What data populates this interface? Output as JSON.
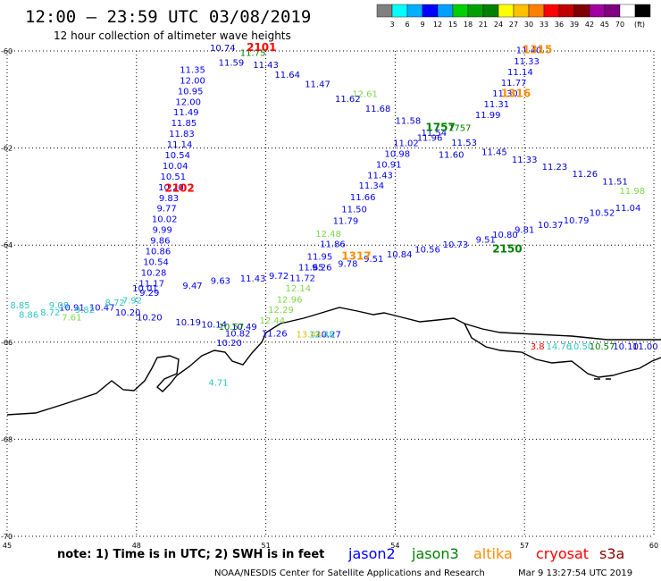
{
  "header": {
    "title": "12:00 – 23:59 UTC 03/08/2019",
    "subtitle": "12 hour collection of altimeter wave heights"
  },
  "color_scale": {
    "colors": [
      "#808080",
      "#00ffff",
      "#00b0ff",
      "#0000ff",
      "#00a0ff",
      "#00d000",
      "#00a000",
      "#008000",
      "#ffff00",
      "#ffc000",
      "#ff8000",
      "#ff0000",
      "#c00000",
      "#800000",
      "#a000a0",
      "#800080",
      "#ffffff",
      "#000000"
    ],
    "labels": [
      "3",
      "6",
      "9",
      "12",
      "15",
      "18",
      "21",
      "24",
      "27",
      "30",
      "33",
      "36",
      "39",
      "42",
      "45",
      "70",
      "(ft)"
    ],
    "unit": "(ft)"
  },
  "footer": {
    "note": "note:  1) Time is in UTC;  2) SWH is in feet",
    "credit": "NOAA/NESDIS Center for Satellite Applications and Research",
    "timestamp": "Mar  9 13:27:54 UTC 2019",
    "missions": [
      {
        "name": "jason2",
        "color": "#0000ff"
      },
      {
        "name": "jason3",
        "color": "#008000"
      },
      {
        "name": "altika",
        "color": "#ff8c00"
      },
      {
        "name": "cryosat",
        "color": "#ff0000"
      },
      {
        "name": "s3a",
        "color": "#8b0000"
      }
    ]
  },
  "chart_data": {
    "type": "scatter",
    "title": "12:00 – 23:59 UTC 03/08/2019",
    "subtitle": "12 hour collection of altimeter wave heights",
    "xlabel": "",
    "ylabel": "",
    "xlim": [
      45,
      60
    ],
    "ylim": [
      -70,
      -60
    ],
    "x_ticks": [
      45,
      48,
      51,
      54,
      57,
      60
    ],
    "y_ticks": [
      -60,
      -62,
      -64,
      -66,
      -68,
      -70
    ],
    "x_tick_labels": [
      "45",
      "48",
      "51",
      "54",
      "57",
      "60"
    ],
    "y_tick_labels": [
      "-60",
      "-62",
      "-64",
      "-66",
      "-68",
      "-70"
    ],
    "grid": true,
    "pass_times": [
      {
        "text": "2101",
        "lon": 50.9,
        "lat": -60.0,
        "color": "#ff0000"
      },
      {
        "text": "1315",
        "lon": 57.3,
        "lat": -60.05,
        "color": "#ff8c00"
      },
      {
        "text": "1316",
        "lon": 56.8,
        "lat": -60.95,
        "color": "#ff8c00"
      },
      {
        "text": "1757",
        "lon": 55.05,
        "lat": -61.65,
        "color": "#008000"
      },
      {
        "text": "2102",
        "lon": 49.0,
        "lat": -62.9,
        "color": "#ff0000"
      },
      {
        "text": "2150",
        "lon": 56.6,
        "lat": -64.15,
        "color": "#008000"
      },
      {
        "text": "1317",
        "lon": 53.1,
        "lat": -64.3,
        "color": "#ff8c00"
      }
    ],
    "series": [
      {
        "name": "jason2",
        "color": "#0000ff",
        "points": [
          {
            "lon": 49.3,
            "lat": -60.45,
            "v": "11.35"
          },
          {
            "lon": 49.3,
            "lat": -60.67,
            "v": "12.00"
          },
          {
            "lon": 49.25,
            "lat": -60.89,
            "v": "10.95"
          },
          {
            "lon": 49.2,
            "lat": -61.11,
            "v": "12.00"
          },
          {
            "lon": 49.15,
            "lat": -61.33,
            "v": "11.49"
          },
          {
            "lon": 49.1,
            "lat": -61.55,
            "v": "11.85"
          },
          {
            "lon": 49.05,
            "lat": -61.77,
            "v": "11.83"
          },
          {
            "lon": 49.0,
            "lat": -61.99,
            "v": "11.14"
          },
          {
            "lon": 48.95,
            "lat": -62.21,
            "v": "10.54"
          },
          {
            "lon": 48.9,
            "lat": -62.43,
            "v": "10.04"
          },
          {
            "lon": 48.85,
            "lat": -62.65,
            "v": "10.51"
          },
          {
            "lon": 48.8,
            "lat": -62.87,
            "v": "10.20"
          },
          {
            "lon": 48.75,
            "lat": -63.09,
            "v": "9.83"
          },
          {
            "lon": 48.7,
            "lat": -63.31,
            "v": "9.77"
          },
          {
            "lon": 48.65,
            "lat": -63.53,
            "v": "10.02"
          },
          {
            "lon": 48.6,
            "lat": -63.75,
            "v": "9.99"
          },
          {
            "lon": 48.55,
            "lat": -63.97,
            "v": "9.86"
          },
          {
            "lon": 48.5,
            "lat": -64.19,
            "v": "10.86"
          },
          {
            "lon": 48.45,
            "lat": -64.41,
            "v": "10.54"
          },
          {
            "lon": 48.4,
            "lat": -64.63,
            "v": "10.28"
          },
          {
            "lon": 48.35,
            "lat": -64.85,
            "v": "11.17"
          },
          {
            "lon": 48.3,
            "lat": -65.05,
            "v": "9.29"
          },
          {
            "lon": 57.1,
            "lat": -60.05,
            "v": "11.40"
          },
          {
            "lon": 57.05,
            "lat": -60.28,
            "v": "11.33"
          },
          {
            "lon": 56.9,
            "lat": -60.5,
            "v": "11.14"
          },
          {
            "lon": 56.75,
            "lat": -60.72,
            "v": "11.77"
          },
          {
            "lon": 56.55,
            "lat": -60.94,
            "v": "11.30"
          },
          {
            "lon": 56.35,
            "lat": -61.16,
            "v": "11.31"
          },
          {
            "lon": 56.15,
            "lat": -61.38,
            "v": "11.99"
          },
          {
            "lon": 54.25,
            "lat": -61.96,
            "v": "11.02"
          },
          {
            "lon": 54.05,
            "lat": -62.18,
            "v": "10.98"
          },
          {
            "lon": 53.85,
            "lat": -62.4,
            "v": "10.91"
          },
          {
            "lon": 53.65,
            "lat": -62.62,
            "v": "11.43"
          },
          {
            "lon": 53.45,
            "lat": -62.84,
            "v": "11.34"
          },
          {
            "lon": 53.25,
            "lat": -63.08,
            "v": "11.66"
          },
          {
            "lon": 53.05,
            "lat": -63.32,
            "v": "11.50"
          },
          {
            "lon": 52.85,
            "lat": -63.56,
            "v": "11.79"
          },
          {
            "lon": 52.55,
            "lat": -64.04,
            "v": "11.86"
          },
          {
            "lon": 52.25,
            "lat": -64.3,
            "v": "11.95"
          },
          {
            "lon": 52.05,
            "lat": -64.52,
            "v": "11.65"
          },
          {
            "lon": 51.85,
            "lat": -64.74,
            "v": "11.72"
          },
          {
            "lon": 48.2,
            "lat": -64.95,
            "v": "10.01"
          },
          {
            "lon": 49.3,
            "lat": -64.9,
            "v": "9.47"
          },
          {
            "lon": 49.95,
            "lat": -64.8,
            "v": "9.63"
          },
          {
            "lon": 50.7,
            "lat": -64.75,
            "v": "11.43"
          },
          {
            "lon": 51.3,
            "lat": -64.7,
            "v": "9.72"
          },
          {
            "lon": 52.3,
            "lat": -64.52,
            "v": "9.26"
          },
          {
            "lon": 52.9,
            "lat": -64.45,
            "v": "9.78"
          },
          {
            "lon": 53.5,
            "lat": -64.35,
            "v": "9.51"
          },
          {
            "lon": 54.1,
            "lat": -64.25,
            "v": "10.84"
          },
          {
            "lon": 54.75,
            "lat": -64.15,
            "v": "10.56"
          },
          {
            "lon": 55.4,
            "lat": -64.05,
            "v": "10.73"
          },
          {
            "lon": 56.1,
            "lat": -63.95,
            "v": "9.51"
          },
          {
            "lon": 56.55,
            "lat": -63.85,
            "v": "10.80"
          },
          {
            "lon": 57.0,
            "lat": -63.75,
            "v": "9.81"
          },
          {
            "lon": 57.6,
            "lat": -63.65,
            "v": "10.37"
          },
          {
            "lon": 58.2,
            "lat": -63.55,
            "v": "10.79"
          },
          {
            "lon": 58.8,
            "lat": -63.4,
            "v": "10.52"
          },
          {
            "lon": 59.4,
            "lat": -63.3,
            "v": "11.04"
          },
          {
            "lon": 50.35,
            "lat": -65.88,
            "v": "10.82"
          },
          {
            "lon": 50.15,
            "lat": -66.08,
            "v": "10.20"
          },
          {
            "lon": 51.2,
            "lat": -65.88,
            "v": "11.26"
          },
          {
            "lon": 52.45,
            "lat": -65.9,
            "v": "10.27"
          },
          {
            "lon": 46.5,
            "lat": -65.35,
            "v": "10.91"
          },
          {
            "lon": 47.2,
            "lat": -65.35,
            "v": "10.47"
          },
          {
            "lon": 47.8,
            "lat": -65.45,
            "v": "10.20"
          },
          {
            "lon": 59.35,
            "lat": -66.15,
            "v": "10.10"
          }
        ]
      },
      {
        "name": "jason3",
        "color": "#008000",
        "points": [
          {
            "lon": 50.7,
            "lat": -60.1,
            "v": "11.75"
          },
          {
            "lon": 55.5,
            "lat": -61.65,
            "v": "1757"
          }
        ]
      },
      {
        "name": "altika",
        "color": "#7cd94a",
        "points": [
          {
            "lon": 52.45,
            "lat": -63.83,
            "v": "12.48"
          },
          {
            "lon": 51.75,
            "lat": -64.95,
            "v": "12.14"
          },
          {
            "lon": 51.55,
            "lat": -65.18,
            "v": "12.96"
          },
          {
            "lon": 51.35,
            "lat": -65.4,
            "v": "12.29"
          },
          {
            "lon": 51.15,
            "lat": -65.62,
            "v": "12.44"
          },
          {
            "lon": 53.3,
            "lat": -60.95,
            "v": "12.61"
          },
          {
            "lon": 59.5,
            "lat": -62.95,
            "v": "11.98"
          }
        ]
      },
      {
        "name": "cryosat",
        "color": "#ff0000",
        "points": [
          {
            "lon": 57.3,
            "lat": -66.15,
            "v": "3.8"
          }
        ]
      },
      {
        "name": "s3a",
        "color": "#2ec4c4",
        "points": [
          {
            "lon": 46.0,
            "lat": -65.45,
            "v": "8.72"
          },
          {
            "lon": 45.5,
            "lat": -65.5,
            "v": "8.86"
          },
          {
            "lon": 49.9,
            "lat": -66.9,
            "v": "4.71"
          },
          {
            "lon": 57.8,
            "lat": -66.15,
            "v": "14.76"
          }
        ]
      }
    ],
    "dense_labels": [
      {
        "lon": 50.0,
        "lat": -60.0,
        "v": "10.74",
        "color": "#0000cc"
      },
      {
        "lon": 50.2,
        "lat": -60.3,
        "v": "11.59",
        "color": "#0000cc"
      },
      {
        "lon": 51.0,
        "lat": -60.35,
        "v": "11.43",
        "color": "#0000cc"
      },
      {
        "lon": 51.5,
        "lat": -60.55,
        "v": "11.64",
        "color": "#0000cc"
      },
      {
        "lon": 52.2,
        "lat": -60.75,
        "v": "11.47",
        "color": "#0000cc"
      },
      {
        "lon": 52.9,
        "lat": -61.05,
        "v": "11.62",
        "color": "#0000cc"
      },
      {
        "lon": 53.6,
        "lat": -61.25,
        "v": "11.68",
        "color": "#0000cc"
      },
      {
        "lon": 54.3,
        "lat": -61.5,
        "v": "11.58",
        "color": "#0000cc"
      },
      {
        "lon": 54.9,
        "lat": -61.75,
        "v": "11.54",
        "color": "#0000cc"
      },
      {
        "lon": 55.6,
        "lat": -61.95,
        "v": "11.53",
        "color": "#0000cc"
      },
      {
        "lon": 56.3,
        "lat": -62.15,
        "v": "11.45",
        "color": "#0000cc"
      },
      {
        "lon": 57.0,
        "lat": -62.3,
        "v": "11.33",
        "color": "#0000cc"
      },
      {
        "lon": 57.7,
        "lat": -62.45,
        "v": "11.23",
        "color": "#0000cc"
      },
      {
        "lon": 58.4,
        "lat": -62.6,
        "v": "11.26",
        "color": "#0000cc"
      },
      {
        "lon": 59.1,
        "lat": -62.75,
        "v": "11.51",
        "color": "#0000cc"
      },
      {
        "lon": 55.3,
        "lat": -62.2,
        "v": "11.60",
        "color": "#0000cc"
      },
      {
        "lon": 54.8,
        "lat": -61.85,
        "v": "11.96",
        "color": "#0000cc"
      },
      {
        "lon": 45.3,
        "lat": -65.3,
        "v": "8.85",
        "color": "#2ec4c4"
      },
      {
        "lon": 46.2,
        "lat": -65.3,
        "v": "9.08",
        "color": "#2ec4c4"
      },
      {
        "lon": 46.8,
        "lat": -65.4,
        "v": "9.82",
        "color": "#2ec4c4"
      },
      {
        "lon": 47.5,
        "lat": -65.25,
        "v": "8.72",
        "color": "#2ec4c4"
      },
      {
        "lon": 47.9,
        "lat": -65.2,
        "v": "7.92",
        "color": "#2ec4c4"
      },
      {
        "lon": 46.5,
        "lat": -65.55,
        "v": "7.61",
        "color": "#7cd94a"
      },
      {
        "lon": 48.3,
        "lat": -65.55,
        "v": "10.20",
        "color": "#0000cc"
      },
      {
        "lon": 49.2,
        "lat": -65.65,
        "v": "10.19",
        "color": "#0000cc"
      },
      {
        "lon": 49.8,
        "lat": -65.7,
        "v": "10.14",
        "color": "#0000cc"
      },
      {
        "lon": 50.5,
        "lat": -65.75,
        "v": "10.49",
        "color": "#0000cc"
      },
      {
        "lon": 50.2,
        "lat": -65.75,
        "v": "10.57",
        "color": "#008000"
      },
      {
        "lon": 52.0,
        "lat": -65.9,
        "v": "13.44",
        "color": "#e0c000"
      },
      {
        "lon": 52.3,
        "lat": -65.9,
        "v": "12.48",
        "color": "#2ec4c4"
      },
      {
        "lon": 58.3,
        "lat": -66.15,
        "v": "10.50",
        "color": "#2ec4c4"
      },
      {
        "lon": 58.8,
        "lat": -66.15,
        "v": "10.57",
        "color": "#008000"
      },
      {
        "lon": 59.8,
        "lat": -66.15,
        "v": "11.00",
        "color": "#0000cc"
      }
    ]
  }
}
